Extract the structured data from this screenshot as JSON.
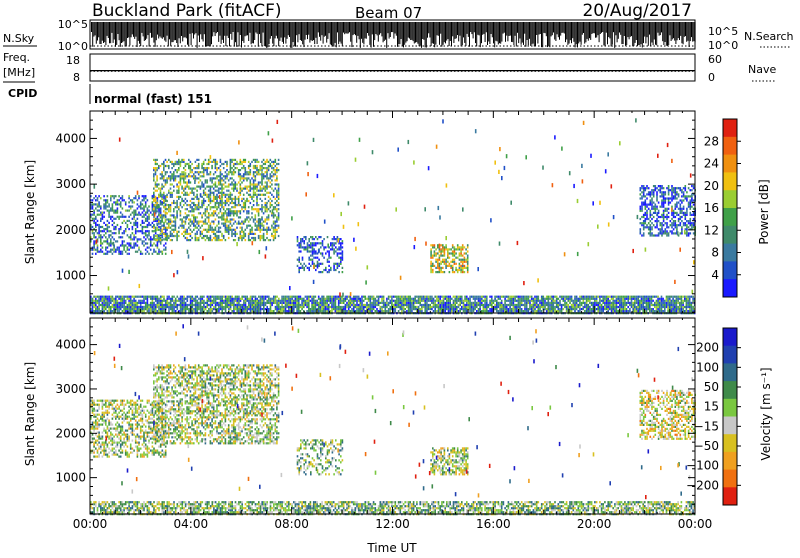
{
  "header": {
    "title": "Buckland Park (fitACF)",
    "beam": "Beam 07",
    "date": "20/Aug/2017"
  },
  "noise_panel": {
    "left_label": "N.Sky",
    "right_label": "N.Search",
    "y_top_tick": "10^5",
    "y_bottom_tick": "10^0"
  },
  "freq_panel": {
    "label_line1": "Freq.",
    "label_line2": "[MHz]",
    "right_label": "Nave",
    "left_ticks": [
      "18",
      "8"
    ],
    "right_ticks": [
      "60",
      "0"
    ],
    "freq_mhz": 12,
    "nave": 22
  },
  "cpid": {
    "label": "CPID",
    "value": "normal (fast) 151"
  },
  "colors": {
    "power": [
      "#1a1aff",
      "#2050c8",
      "#3a7aa0",
      "#3f8a6a",
      "#3fa048",
      "#9acd32",
      "#f0c010",
      "#f09010",
      "#f06010",
      "#e02010"
    ],
    "velocity": [
      "#1a1acc",
      "#2040b0",
      "#2f6a8a",
      "#3f8a4a",
      "#7ac840",
      "#c8c8c8",
      "#d8c020",
      "#f0a020",
      "#f07010",
      "#e02010"
    ]
  },
  "chart_data": [
    {
      "type": "heatmap",
      "name": "power",
      "xlabel": "",
      "ylabel": "Slant Range [km]",
      "x_range_hours": [
        0,
        24
      ],
      "ylim": [
        180,
        4600
      ],
      "y_ticks": [
        "1000",
        "2000",
        "3000",
        "4000"
      ],
      "colorbar": {
        "label": "Power [dB]",
        "ticks": [
          "4",
          "8",
          "12",
          "16",
          "20",
          "24",
          "28"
        ],
        "range": [
          0,
          32
        ]
      },
      "echo_regions": [
        {
          "t0": 0.0,
          "t1": 24.0,
          "r0": 200,
          "r1": 600,
          "value": 10,
          "density": 0.85
        },
        {
          "t0": 0.0,
          "t1": 3.0,
          "r0": 1500,
          "r1": 2800,
          "value": 8,
          "density": 0.45
        },
        {
          "t0": 2.5,
          "t1": 7.5,
          "r0": 1800,
          "r1": 3600,
          "value": 13,
          "density": 0.5
        },
        {
          "t0": 8.2,
          "t1": 10.0,
          "r0": 1100,
          "r1": 1900,
          "value": 6,
          "density": 0.4
        },
        {
          "t0": 13.5,
          "t1": 15.0,
          "r0": 1100,
          "r1": 1700,
          "value": 18,
          "density": 0.6
        },
        {
          "t0": 21.8,
          "t1": 24.0,
          "r0": 1900,
          "r1": 3000,
          "value": 6,
          "density": 0.55
        }
      ]
    },
    {
      "type": "heatmap",
      "name": "velocity",
      "xlabel": "Time UT",
      "ylabel": "Slant Range [km]",
      "x_range_hours": [
        0,
        24
      ],
      "ylim": [
        180,
        4600
      ],
      "x_ticks": [
        "00:00",
        "04:00",
        "08:00",
        "12:00",
        "16:00",
        "20:00",
        "00:00"
      ],
      "y_ticks": [
        "1000",
        "2000",
        "3000",
        "4000"
      ],
      "colorbar": {
        "label": "Velocity [m s⁻¹]",
        "ticks": [
          "200",
          "100",
          "50",
          "15",
          "−15",
          "−50",
          "−100",
          "−200"
        ],
        "range": [
          -250,
          250
        ]
      },
      "echo_regions": [
        {
          "t0": 0.0,
          "t1": 24.0,
          "r0": 200,
          "r1": 500,
          "value": 30,
          "density": 0.7
        },
        {
          "t0": 0.0,
          "t1": 3.0,
          "r0": 1500,
          "r1": 2800,
          "value": 0,
          "density": 0.5
        },
        {
          "t0": 2.5,
          "t1": 7.5,
          "r0": 1800,
          "r1": 3600,
          "value": 0,
          "density": 0.55
        },
        {
          "t0": 8.2,
          "t1": 10.0,
          "r0": 1100,
          "r1": 1900,
          "value": 20,
          "density": 0.4
        },
        {
          "t0": 13.5,
          "t1": 15.0,
          "r0": 1100,
          "r1": 1700,
          "value": 0,
          "density": 0.6
        },
        {
          "t0": 21.8,
          "t1": 24.0,
          "r0": 1900,
          "r1": 3000,
          "value": -40,
          "density": 0.55
        }
      ]
    }
  ]
}
